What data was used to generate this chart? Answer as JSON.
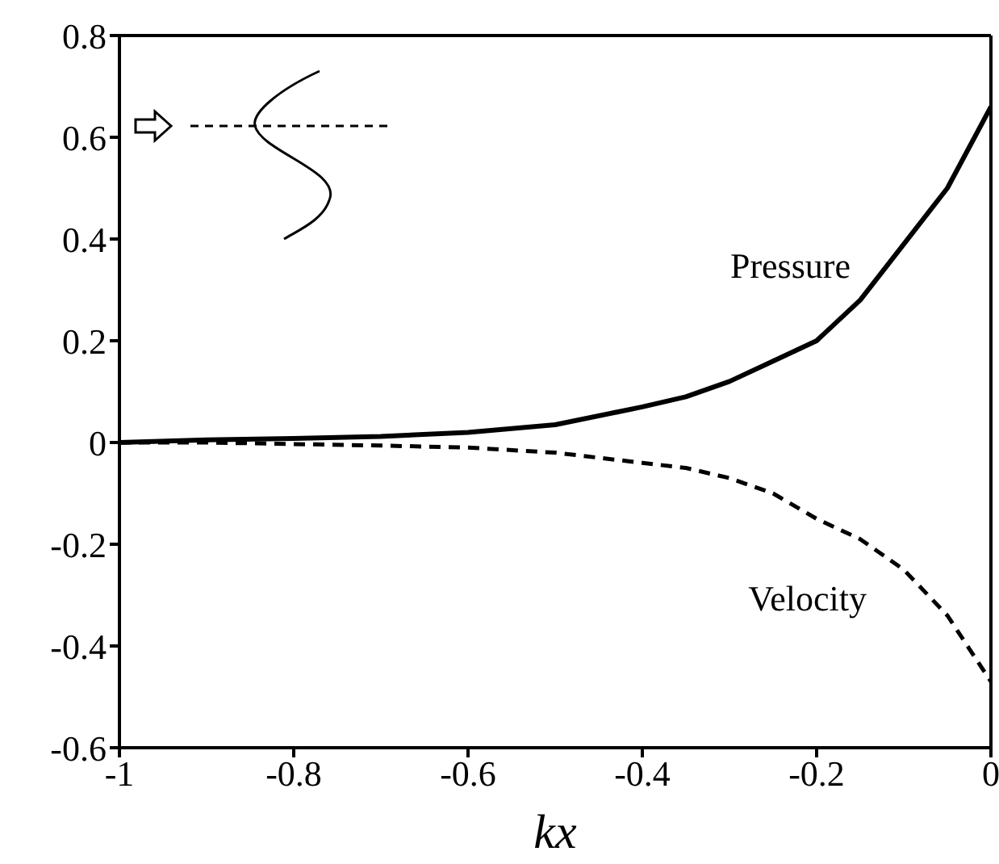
{
  "chart_data": {
    "type": "line",
    "xlabel": "kx",
    "x": [
      -1,
      -0.9,
      -0.8,
      -0.7,
      -0.6,
      -0.5,
      -0.4,
      -0.35,
      -0.3,
      -0.25,
      -0.2,
      -0.15,
      -0.1,
      -0.05,
      0
    ],
    "series": [
      {
        "name": "Pressure",
        "color": "#000000",
        "line_style": "solid",
        "values": [
          0,
          0.005,
          0.008,
          0.012,
          0.02,
          0.035,
          0.07,
          0.09,
          0.12,
          0.16,
          0.2,
          0.28,
          0.39,
          0.5,
          0.66
        ]
      },
      {
        "name": "Velocity",
        "color": "#000000",
        "line_style": "dashed",
        "values": [
          0,
          0,
          -0.003,
          -0.006,
          -0.01,
          -0.02,
          -0.04,
          -0.05,
          -0.07,
          -0.1,
          -0.15,
          -0.19,
          -0.25,
          -0.34,
          -0.47
        ]
      }
    ],
    "xlim": [
      -1,
      0
    ],
    "xticks": [
      -1,
      -0.8,
      -0.6,
      -0.4,
      -0.2,
      0
    ],
    "ylim": [
      -0.6,
      0.8
    ],
    "yticks": [
      -0.6,
      -0.4,
      -0.2,
      0,
      0.2,
      0.4,
      0.6,
      0.8
    ],
    "grid": false,
    "legend": false,
    "marker": "none"
  }
}
